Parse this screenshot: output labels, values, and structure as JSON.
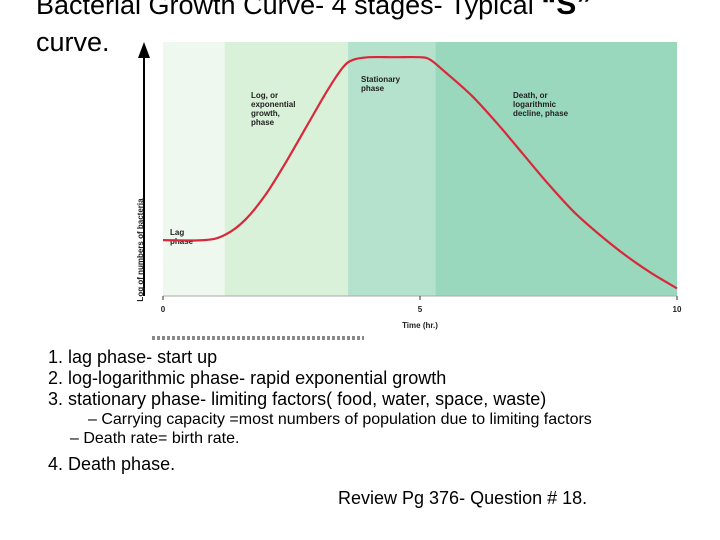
{
  "slide": {
    "title_part1": "Bacterial Growth Curve- 4 stages- Typical",
    "title_s": "“S”",
    "title_part2": "curve.",
    "notes": {
      "item1": "1. lag phase- start up",
      "item2": "2. log-logarithmic phase- rapid exponential growth",
      "item3": "3. stationary phase- limiting factors( food, water, space, waste)",
      "sub1": "– Carrying capacity =most numbers of population due to limiting factors",
      "sub2": "– Death rate= birth rate.",
      "item4": "4. Death phase."
    },
    "review": "Review Pg 376- Question # 18."
  },
  "chart_data": {
    "type": "line",
    "xlabel": "Time (hr.)",
    "ylabel": "Log of numbers of bacteria",
    "x_ticks": [
      0,
      5,
      10
    ],
    "xlim": [
      0,
      10
    ],
    "phases": [
      {
        "label": "Lag phase",
        "start": 0,
        "end": 1.2,
        "color": "#eef8ee"
      },
      {
        "label": "Log, or exponential growth, phase",
        "start": 1.2,
        "end": 3.6,
        "color": "#d9f0d9"
      },
      {
        "label": "Stationary phase",
        "start": 3.6,
        "end": 5.3,
        "color": "#b5e2cc"
      },
      {
        "label": "Death, or logarithmic decline, phase",
        "start": 5.3,
        "end": 10,
        "color": "#9ad8bd"
      }
    ],
    "series": [
      {
        "x": [
          0,
          0.8,
          1.2,
          1.6,
          2.0,
          2.4,
          2.8,
          3.2,
          3.5,
          3.7,
          4.0,
          4.5,
          5.0,
          5.2,
          5.5,
          6.0,
          6.5,
          7.0,
          7.5,
          8.0,
          8.5,
          9.0,
          9.5,
          10.0
        ],
        "y": [
          0.22,
          0.22,
          0.24,
          0.3,
          0.4,
          0.53,
          0.67,
          0.81,
          0.9,
          0.93,
          0.94,
          0.94,
          0.94,
          0.93,
          0.88,
          0.79,
          0.68,
          0.56,
          0.44,
          0.33,
          0.24,
          0.16,
          0.09,
          0.03
        ]
      }
    ],
    "ylim": [
      0,
      1
    ]
  }
}
